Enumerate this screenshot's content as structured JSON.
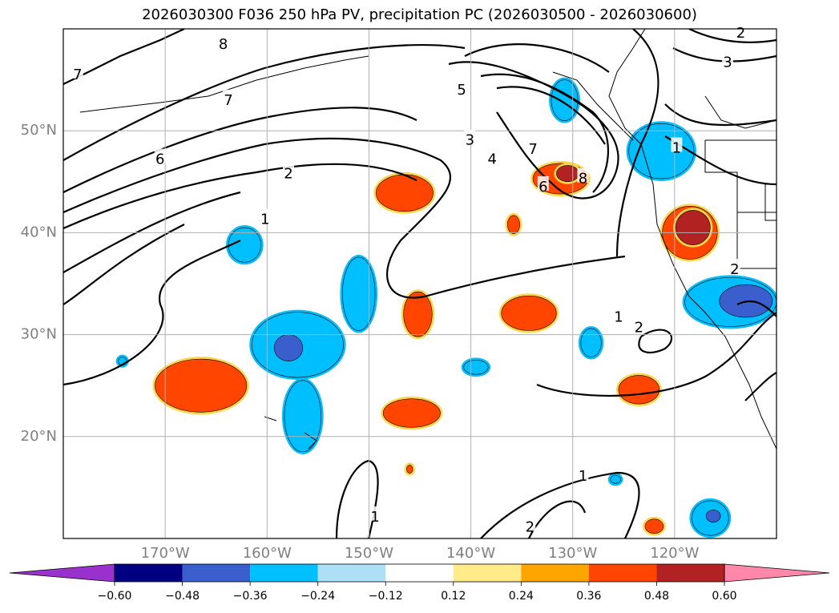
{
  "chart_data": {
    "type": "map",
    "title": "2026030300 F036 250 hPa PV, precipitation PC (2026030500 - 2026030600)",
    "lon_range": [
      -180,
      -110
    ],
    "lat_range": [
      10,
      60
    ],
    "lat_ticks": [
      {
        "value": 20,
        "label": "20°N"
      },
      {
        "value": 30,
        "label": "30°N"
      },
      {
        "value": 40,
        "label": "40°N"
      },
      {
        "value": 50,
        "label": "50°N"
      }
    ],
    "lon_ticks": [
      {
        "value": -170,
        "label": "170°W"
      },
      {
        "value": -160,
        "label": "160°W"
      },
      {
        "value": -150,
        "label": "150°W"
      },
      {
        "value": -140,
        "label": "140°W"
      },
      {
        "value": -130,
        "label": "130°W"
      },
      {
        "value": -120,
        "label": "120°W"
      }
    ],
    "grid": true,
    "colorbar": {
      "levels": [
        -0.6,
        -0.48,
        -0.36,
        -0.24,
        -0.12,
        0.12,
        0.24,
        0.36,
        0.48,
        0.6
      ],
      "labels": [
        "−0.60",
        "−0.48",
        "−0.36",
        "−0.24",
        "−0.12",
        "0.12",
        "0.24",
        "0.36",
        "0.48",
        "0.60"
      ],
      "colors": [
        "#9932CC",
        "#000080",
        "#3A5FCD",
        "#00BFFF",
        "#ADDFF7",
        "#FFFFFF",
        "#FFEB8A",
        "#FFA500",
        "#FF4500",
        "#B22222",
        "#FF88AA"
      ],
      "extend": "both"
    },
    "pv_contour_labels": [
      {
        "text": "8",
        "lon": -164.3,
        "lat": 58.6
      },
      {
        "text": "7",
        "lon": -178.6,
        "lat": 55.6
      },
      {
        "text": "7",
        "lon": -163.8,
        "lat": 53.1
      },
      {
        "text": "6",
        "lon": -170.5,
        "lat": 47.3
      },
      {
        "text": "2",
        "lon": -157.9,
        "lat": 45.9
      },
      {
        "text": "1",
        "lon": -160.2,
        "lat": 41.4
      },
      {
        "text": "5",
        "lon": -140.9,
        "lat": 54.1
      },
      {
        "text": "3",
        "lon": -140.1,
        "lat": 49.2
      },
      {
        "text": "4",
        "lon": -137.9,
        "lat": 47.3
      },
      {
        "text": "7",
        "lon": -133.9,
        "lat": 48.3
      },
      {
        "text": "6",
        "lon": -132.9,
        "lat": 44.6
      },
      {
        "text": "8",
        "lon": -129.0,
        "lat": 45.4
      },
      {
        "text": "1",
        "lon": -119.8,
        "lat": 48.4
      },
      {
        "text": "3",
        "lon": -114.8,
        "lat": 56.8
      },
      {
        "text": "2",
        "lon": -113.5,
        "lat": 59.7
      },
      {
        "text": "2",
        "lon": -114.1,
        "lat": 36.5
      },
      {
        "text": "1",
        "lon": -125.5,
        "lat": 31.8
      },
      {
        "text": "2",
        "lon": -123.5,
        "lat": 30.8
      },
      {
        "text": "1",
        "lon": -129.0,
        "lat": 16.2
      },
      {
        "text": "2",
        "lon": -134.2,
        "lat": 11.2
      },
      {
        "text": "1",
        "lon": -149.4,
        "lat": 12.2
      }
    ],
    "precip_pc_regions": [
      {
        "lon": -166.5,
        "lat": 25.0,
        "rx": 4.5,
        "ry": 2.6,
        "level": 0.36
      },
      {
        "lon": -157.0,
        "lat": 29.0,
        "rx": 4.5,
        "ry": 3.2,
        "level": -0.36
      },
      {
        "lon": -157.9,
        "lat": 28.7,
        "rx": 1.4,
        "ry": 1.3,
        "level": -0.48
      },
      {
        "lon": -156.5,
        "lat": 22.0,
        "rx": 1.8,
        "ry": 3.5,
        "level": -0.36
      },
      {
        "lon": -151.0,
        "lat": 34.0,
        "rx": 1.6,
        "ry": 3.6,
        "level": -0.36
      },
      {
        "lon": -162.2,
        "lat": 38.8,
        "rx": 1.6,
        "ry": 1.7,
        "level": -0.36
      },
      {
        "lon": -146.5,
        "lat": 43.9,
        "rx": 2.8,
        "ry": 1.8,
        "level": 0.36
      },
      {
        "lon": -145.2,
        "lat": 32.0,
        "rx": 1.4,
        "ry": 2.2,
        "level": 0.36
      },
      {
        "lon": -145.8,
        "lat": 22.3,
        "rx": 2.8,
        "ry": 1.4,
        "level": 0.36
      },
      {
        "lon": -134.3,
        "lat": 32.1,
        "rx": 2.7,
        "ry": 1.7,
        "level": 0.36
      },
      {
        "lon": -131.2,
        "lat": 45.3,
        "rx": 2.7,
        "ry": 1.5,
        "level": 0.36
      },
      {
        "lon": -130.5,
        "lat": 45.8,
        "rx": 1.1,
        "ry": 0.8,
        "level": 0.48
      },
      {
        "lon": -121.3,
        "lat": 48.0,
        "rx": 3.2,
        "ry": 2.7,
        "level": -0.36
      },
      {
        "lon": -118.5,
        "lat": 40.0,
        "rx": 2.7,
        "ry": 2.6,
        "level": 0.36
      },
      {
        "lon": -118.2,
        "lat": 40.5,
        "rx": 1.7,
        "ry": 1.7,
        "level": 0.48
      },
      {
        "lon": -114.5,
        "lat": 33.2,
        "rx": 4.5,
        "ry": 2.4,
        "level": -0.36
      },
      {
        "lon": -113.0,
        "lat": 33.3,
        "rx": 2.6,
        "ry": 1.6,
        "level": -0.48
      },
      {
        "lon": -123.5,
        "lat": 24.6,
        "rx": 2.0,
        "ry": 1.4,
        "level": 0.36
      },
      {
        "lon": -128.2,
        "lat": 29.2,
        "rx": 1.0,
        "ry": 1.4,
        "level": -0.36
      },
      {
        "lon": -139.5,
        "lat": 26.8,
        "rx": 1.2,
        "ry": 0.7,
        "level": -0.36
      },
      {
        "lon": -130.8,
        "lat": 53.0,
        "rx": 1.3,
        "ry": 2.0,
        "level": -0.36
      },
      {
        "lon": -116.5,
        "lat": 12.0,
        "rx": 1.8,
        "ry": 1.7,
        "level": -0.36
      },
      {
        "lon": -116.2,
        "lat": 12.2,
        "rx": 0.7,
        "ry": 0.6,
        "level": -0.48
      },
      {
        "lon": -135.8,
        "lat": 40.8,
        "rx": 0.6,
        "ry": 0.9,
        "level": 0.36
      },
      {
        "lon": -122.0,
        "lat": 11.2,
        "rx": 0.9,
        "ry": 0.7,
        "level": 0.36
      },
      {
        "lon": -125.8,
        "lat": 15.8,
        "rx": 0.5,
        "ry": 0.4,
        "level": -0.36
      },
      {
        "lon": -174.2,
        "lat": 27.4,
        "rx": 0.4,
        "ry": 0.4,
        "level": -0.36
      },
      {
        "lon": -146.0,
        "lat": 16.8,
        "rx": 0.3,
        "ry": 0.4,
        "level": 0.36
      }
    ]
  }
}
